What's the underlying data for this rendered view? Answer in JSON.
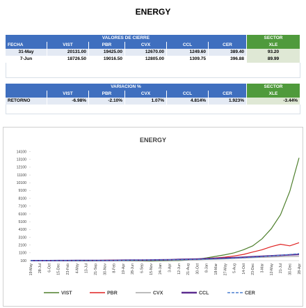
{
  "header": {
    "title": "ENERGY"
  },
  "table1": {
    "group_header": "VALORES DE CIERRE",
    "sector_header": "SECTOR",
    "columns": [
      "FECHA",
      "VIST",
      "PBR",
      "CVX",
      "CCL",
      "CER",
      "XLE"
    ],
    "rows": [
      [
        "31-May",
        "20131.00",
        "19425.00",
        "12670.00",
        "1249.60",
        "389.40",
        "93.20"
      ],
      [
        "7-Jun",
        "18726.50",
        "19016.50",
        "12805.00",
        "1309.75",
        "396.88",
        "89.99"
      ]
    ]
  },
  "table2": {
    "group_header": "VARIACION %",
    "sector_header": "SECTOR",
    "columns": [
      "VIST",
      "PBR",
      "CVX",
      "CCL",
      "CER",
      "XLE"
    ],
    "rows": [
      [
        "RETORNO",
        "-6.98%",
        "-2.10%",
        "1.07%",
        "4.814%",
        "1.923%",
        "-3.44%"
      ]
    ]
  },
  "chart_data": {
    "type": "line",
    "title": "ENERGY",
    "categories": [
      "19-May",
      "28-Jul",
      "6-Oct",
      "15-Dec",
      "23-Feb",
      "4-May",
      "13-Jul",
      "21-Sep",
      "30-Nov",
      "8-Feb",
      "19-Apr",
      "28-Jun",
      "6-Sep",
      "15-Nov",
      "24-Jan",
      "3-Apr",
      "12-Jun",
      "21-Aug",
      "30-Oct",
      "8-Jan",
      "18-Mar",
      "27-May",
      "5-Aug",
      "14-Oct",
      "23-Dec",
      "3-Mar",
      "12-May",
      "21-Jul",
      "30-Dec",
      "28-Apr"
    ],
    "ylim": [
      100,
      14600
    ],
    "yticks": [
      100,
      1100,
      2100,
      3100,
      4100,
      5100,
      6100,
      7100,
      8100,
      9100,
      10100,
      11100,
      12100,
      13100,
      14100
    ],
    "grid": false,
    "legend": "bottom",
    "series": [
      {
        "name": "VIST",
        "color": "#4e7f2c",
        "style": "solid",
        "values": [
          100,
          95,
          85,
          75,
          70,
          60,
          65,
          70,
          80,
          90,
          80,
          70,
          60,
          50,
          60,
          80,
          110,
          180,
          300,
          450,
          650,
          850,
          1100,
          1500,
          2000,
          2900,
          4200,
          6000,
          9000,
          13300
        ]
      },
      {
        "name": "PBR",
        "color": "#e02020",
        "style": "solid",
        "values": [
          100,
          110,
          120,
          130,
          120,
          110,
          120,
          130,
          150,
          170,
          160,
          150,
          140,
          130,
          150,
          180,
          220,
          260,
          300,
          380,
          450,
          550,
          700,
          900,
          1200,
          1500,
          1900,
          2200,
          2000,
          2400
        ]
      },
      {
        "name": "CVX",
        "color": "#a6a6a6",
        "style": "solid",
        "values": [
          100,
          100,
          105,
          110,
          105,
          100,
          110,
          115,
          120,
          130,
          125,
          120,
          115,
          110,
          120,
          140,
          160,
          180,
          200,
          240,
          280,
          320,
          380,
          430,
          480,
          520,
          560,
          600,
          620,
          650
        ]
      },
      {
        "name": "CCL",
        "color": "#5b2c8f",
        "style": "solid",
        "values": [
          100,
          100,
          100,
          105,
          110,
          115,
          120,
          125,
          130,
          140,
          150,
          160,
          170,
          180,
          200,
          220,
          250,
          280,
          310,
          350,
          390,
          430,
          480,
          540,
          600,
          660,
          720,
          780,
          840,
          900
        ]
      },
      {
        "name": "CER",
        "color": "#4a7fd0",
        "style": "dashed",
        "values": [
          100,
          102,
          104,
          106,
          108,
          110,
          115,
          120,
          125,
          130,
          140,
          150,
          160,
          170,
          180,
          195,
          210,
          230,
          250,
          280,
          310,
          350,
          400,
          460,
          530,
          610,
          700,
          800,
          900,
          1000
        ]
      }
    ]
  }
}
